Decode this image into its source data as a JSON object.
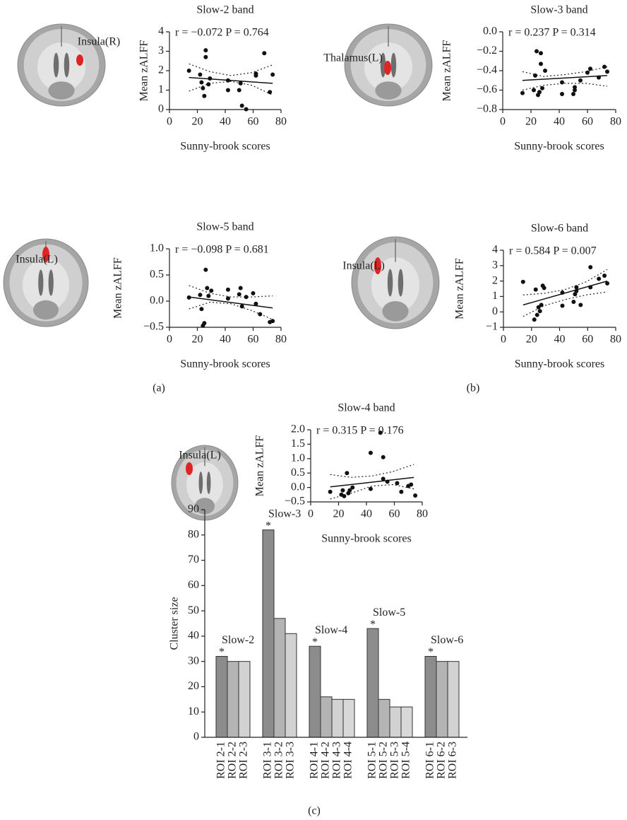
{
  "panel_labels": [
    "(a)",
    "(b)",
    "(c)"
  ],
  "chart_data": [
    {
      "type": "scatter",
      "title": "Slow-2 band",
      "annotation": "r = −0.072 P = 0.764",
      "region_label": "Insula(R)",
      "xlabel": "Sunny-brook scores",
      "ylabel": "Mean zALFF",
      "color": "#111111",
      "xlim": [
        0,
        80
      ],
      "xticks": [
        0,
        20,
        40,
        60,
        80
      ],
      "ylim": [
        0,
        4
      ],
      "yticks": [
        0,
        1,
        2,
        3,
        4
      ],
      "x": [
        14,
        22,
        23,
        24,
        25,
        26,
        26,
        28,
        29,
        42,
        42,
        50,
        51,
        52,
        55,
        62,
        62,
        68,
        72,
        74
      ],
      "y": [
        2.0,
        1.8,
        1.4,
        1.1,
        0.7,
        2.7,
        3.05,
        1.3,
        1.6,
        1.5,
        1.0,
        1.0,
        1.35,
        0.2,
        0.02,
        1.85,
        1.75,
        2.9,
        0.9,
        1.8
      ],
      "fit_line": {
        "x": [
          14,
          74
        ],
        "y": [
          1.65,
          1.35
        ]
      },
      "confidence_band": {
        "x": [
          14,
          29,
          44,
          59,
          74
        ],
        "upper": [
          2.35,
          1.95,
          1.75,
          1.9,
          2.3
        ],
        "lower": [
          0.95,
          1.35,
          1.45,
          1.25,
          0.75
        ]
      }
    },
    {
      "type": "scatter",
      "title": "Slow-3 band",
      "annotation": "r = 0.237 P = 0.314",
      "region_label": "Thalamus(L)",
      "xlabel": "Sunny-brook scores",
      "ylabel": "Mean zALFF",
      "color": "#111111",
      "xlim": [
        0,
        80
      ],
      "xticks": [
        0,
        20,
        40,
        60,
        80
      ],
      "ylim": [
        -0.8,
        0
      ],
      "yticks": [
        {
          "value": -0.8,
          "label": "−0.8"
        },
        {
          "value": -0.6,
          "label": "−0.6"
        },
        {
          "value": -0.4,
          "label": "−0.4"
        },
        {
          "value": -0.2,
          "label": "−0.2"
        },
        {
          "value": 0,
          "label": "0.0"
        }
      ],
      "x": [
        14,
        22,
        23,
        24,
        25,
        26,
        27,
        27,
        28,
        30,
        42,
        42,
        50,
        51,
        51,
        55,
        60,
        62,
        68,
        72,
        74
      ],
      "y": [
        -0.63,
        -0.6,
        -0.45,
        -0.2,
        -0.65,
        -0.62,
        -0.33,
        -0.22,
        -0.58,
        -0.4,
        -0.52,
        -0.64,
        -0.64,
        -0.6,
        -0.57,
        -0.5,
        -0.42,
        -0.38,
        -0.47,
        -0.36,
        -0.41
      ],
      "fit_line": {
        "x": [
          14,
          74
        ],
        "y": [
          -0.5,
          -0.45
        ]
      },
      "confidence_band": {
        "x": [
          14,
          29,
          44,
          59,
          74
        ],
        "upper": [
          -0.41,
          -0.46,
          -0.44,
          -0.41,
          -0.36
        ],
        "lower": [
          -0.6,
          -0.55,
          -0.53,
          -0.53,
          -0.56
        ]
      }
    },
    {
      "type": "scatter",
      "title": "Slow-5 band",
      "annotation": "r = −0.098 P = 0.681",
      "region_label": "Insula(L)",
      "xlabel": "Sunny-brook scores",
      "ylabel": "Mean zALFF",
      "color": "#111111",
      "xlim": [
        0,
        80
      ],
      "xticks": [
        0,
        20,
        40,
        60,
        80
      ],
      "ylim": [
        -0.5,
        1
      ],
      "yticks": [
        {
          "value": -0.5,
          "label": "−0.5"
        },
        {
          "value": 0,
          "label": "0.0"
        },
        {
          "value": 0.5,
          "label": "0.5"
        },
        {
          "value": 1,
          "label": "1.0"
        }
      ],
      "x": [
        14,
        22,
        23,
        24,
        25,
        26,
        27,
        28,
        30,
        42,
        42,
        50,
        51,
        52,
        55,
        60,
        62,
        65,
        72,
        74
      ],
      "y": [
        0.07,
        0.12,
        -0.15,
        -0.47,
        -0.42,
        0.6,
        0.25,
        0.1,
        0.2,
        0.22,
        0.05,
        0.13,
        0.25,
        -0.1,
        0.08,
        0.15,
        -0.05,
        -0.25,
        -0.4,
        -0.38
      ],
      "fit_line": {
        "x": [
          14,
          74
        ],
        "y": [
          0.08,
          -0.13
        ]
      },
      "confidence_band": {
        "x": [
          14,
          29,
          44,
          59,
          74
        ],
        "upper": [
          0.3,
          0.15,
          0.08,
          0.08,
          0.1
        ],
        "lower": [
          -0.15,
          -0.02,
          -0.05,
          -0.18,
          -0.35
        ]
      }
    },
    {
      "type": "scatter",
      "title": "Slow-6 band",
      "annotation": "r = 0.584 P = 0.007",
      "region_label": "Insula(L)",
      "xlabel": "Sunny-brook scores",
      "ylabel": "Mean zALFF",
      "color": "#111111",
      "xlim": [
        0,
        80
      ],
      "xticks": [
        0,
        20,
        40,
        60,
        80
      ],
      "ylim": [
        -1,
        4
      ],
      "yticks": [
        {
          "value": -1,
          "label": "−1"
        },
        0,
        1,
        2,
        3,
        4
      ],
      "x": [
        14,
        22,
        23,
        24,
        25,
        26,
        27,
        28,
        29,
        42,
        42,
        50,
        51,
        52,
        52,
        55,
        62,
        62,
        68,
        72,
        74
      ],
      "y": [
        1.95,
        -0.5,
        1.45,
        -0.2,
        0.3,
        0.05,
        0.45,
        1.7,
        1.55,
        1.25,
        0.4,
        0.65,
        1.15,
        1.35,
        1.6,
        0.45,
        2.9,
        1.6,
        2.15,
        2.35,
        1.85
      ],
      "fit_line": {
        "x": [
          14,
          74
        ],
        "y": [
          0.45,
          2.0
        ]
      },
      "confidence_band": {
        "x": [
          14,
          29,
          44,
          59,
          74
        ],
        "upper": [
          1.1,
          1.2,
          1.45,
          1.95,
          2.75
        ],
        "lower": [
          -0.3,
          0.4,
          0.8,
          1.1,
          1.3
        ]
      }
    },
    {
      "type": "scatter",
      "title": "Slow-4 band",
      "annotation": "r = 0.315 P = 0.176",
      "region_label": "Insula(L)",
      "xlabel": "Sunny-brook scores",
      "ylabel": "Mean zALFF",
      "color": "#111111",
      "xlim": [
        0,
        80
      ],
      "xticks": [
        0,
        20,
        40,
        60,
        80
      ],
      "ylim": [
        -0.5,
        2
      ],
      "yticks": [
        {
          "value": -0.5,
          "label": "−0.5"
        },
        {
          "value": 0,
          "label": "0.0"
        },
        {
          "value": 0.5,
          "label": "0.5"
        },
        {
          "value": 1,
          "label": "1.0"
        },
        {
          "value": 1.5,
          "label": "1.5"
        },
        {
          "value": 2,
          "label": "2.0"
        }
      ],
      "x": [
        14,
        22,
        23,
        24,
        26,
        27,
        28,
        30,
        43,
        43,
        50,
        52,
        52,
        55,
        62,
        65,
        70,
        72,
        75
      ],
      "y": [
        -0.15,
        -0.25,
        -0.1,
        -0.3,
        0.5,
        -0.2,
        -0.1,
        0.0,
        1.2,
        -0.05,
        1.9,
        1.05,
        0.3,
        0.2,
        0.15,
        -0.15,
        0.05,
        0.1,
        -0.28
      ],
      "fit_line": {
        "x": [
          14,
          74
        ],
        "y": [
          0.02,
          0.35
        ]
      },
      "confidence_band": {
        "x": [
          14,
          29,
          44,
          59,
          74
        ],
        "upper": [
          0.45,
          0.35,
          0.4,
          0.55,
          0.8
        ],
        "lower": [
          -0.4,
          -0.2,
          0.05,
          0.1,
          -0.05
        ]
      }
    },
    {
      "type": "grouped_bar",
      "ylabel": "Cluster size",
      "ylim": [
        0,
        90
      ],
      "yticks": [
        0,
        10,
        20,
        30,
        40,
        50,
        60,
        70,
        80,
        90
      ],
      "bar_colors": [
        "#8c8c8c",
        "#b4b4b4",
        "#d2d2d2",
        "#d8d8d8"
      ],
      "groups": [
        {
          "label": "Slow-2",
          "annotation": "*",
          "categories": [
            "ROI 2-1",
            "ROI 2-2",
            "ROI 2-3"
          ],
          "values": [
            32,
            30,
            30
          ]
        },
        {
          "label": "Slow-3",
          "annotation": "*",
          "categories": [
            "ROI 3-1",
            "ROI 3-2",
            "ROI 3-3"
          ],
          "values": [
            82,
            47,
            41
          ]
        },
        {
          "label": "Slow-4",
          "annotation": "*",
          "categories": [
            "ROI 4-1",
            "ROI 4-2",
            "ROI 4-3",
            "ROI 4-4"
          ],
          "values": [
            36,
            16,
            15,
            15
          ]
        },
        {
          "label": "Slow-5",
          "annotation": "*",
          "categories": [
            "ROI 5-1",
            "ROI 5-2",
            "ROI 5-3",
            "ROI 5-4"
          ],
          "values": [
            43,
            15,
            12,
            12
          ]
        },
        {
          "label": "Slow-6",
          "annotation": "*",
          "categories": [
            "ROI 6-1",
            "ROI 6-2",
            "ROI 6-3"
          ],
          "values": [
            32,
            30,
            30
          ]
        }
      ]
    }
  ]
}
